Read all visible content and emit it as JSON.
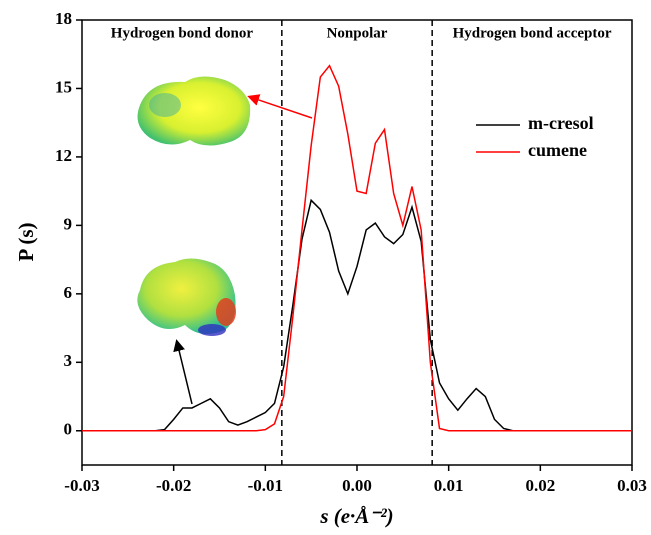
{
  "chart_data": {
    "type": "line",
    "xlabel": "s (e·Å⁻²)",
    "ylabel": "P (s)",
    "annotations": [
      "Hydrogen bond donor",
      "Nonpolar",
      "Hydrogen bond acceptor"
    ],
    "vlines": [
      -0.0082,
      0.0082
    ],
    "x": [
      -0.03,
      -0.029,
      -0.028,
      -0.027,
      -0.026,
      -0.025,
      -0.024,
      -0.023,
      -0.022,
      -0.021,
      -0.02,
      -0.019,
      -0.018,
      -0.017,
      -0.016,
      -0.015,
      -0.014,
      -0.013,
      -0.012,
      -0.011,
      -0.01,
      -0.009,
      -0.008,
      -0.007,
      -0.006,
      -0.005,
      -0.004,
      -0.003,
      -0.002,
      -0.001,
      0,
      0.001,
      0.002,
      0.003,
      0.004,
      0.005,
      0.006,
      0.007,
      0.008,
      0.009,
      0.01,
      0.011,
      0.012,
      0.013,
      0.014,
      0.015,
      0.016,
      0.017,
      0.018,
      0.019,
      0.02,
      0.021,
      0.022,
      0.023,
      0.024,
      0.025,
      0.026,
      0.027,
      0.028,
      0.029,
      0.03
    ],
    "series": [
      {
        "name": "m-cresol",
        "color": "#000000",
        "values": [
          0,
          0,
          0,
          0,
          0,
          0,
          0,
          0,
          0,
          0.05,
          0.5,
          1.0,
          1.0,
          1.2,
          1.4,
          1.0,
          0.4,
          0.25,
          0.4,
          0.6,
          0.8,
          1.2,
          2.8,
          5.5,
          8.4,
          10.1,
          9.7,
          8.7,
          7.0,
          6.0,
          7.2,
          8.8,
          9.1,
          8.5,
          8.2,
          8.6,
          9.8,
          8.3,
          4.0,
          2.1,
          1.4,
          0.9,
          1.4,
          1.85,
          1.5,
          0.5,
          0.1,
          0,
          0,
          0,
          0,
          0,
          0,
          0,
          0,
          0,
          0,
          0,
          0,
          0,
          0
        ]
      },
      {
        "name": "cumene",
        "color": "#ff0000",
        "values": [
          0,
          0,
          0,
          0,
          0,
          0,
          0,
          0,
          0,
          0,
          0,
          0,
          0,
          0,
          0,
          0,
          0,
          0,
          0,
          0,
          0.05,
          0.3,
          1.5,
          5.0,
          8.8,
          12.5,
          15.5,
          16.0,
          15.1,
          13.0,
          10.5,
          10.4,
          12.6,
          13.2,
          10.4,
          9.0,
          10.7,
          8.8,
          3.0,
          0.1,
          0,
          0,
          0,
          0,
          0,
          0,
          0,
          0,
          0,
          0,
          0,
          0,
          0,
          0,
          0,
          0,
          0,
          0,
          0,
          0,
          0
        ]
      }
    ],
    "xlim": [
      -0.03,
      0.03
    ],
    "xticks": [
      -0.03,
      -0.02,
      -0.01,
      {
        "value": 0,
        "label": "0.00"
      },
      0.01,
      0.02,
      0.03
    ],
    "ylim": [
      -1.5,
      18
    ],
    "yticks": [
      0,
      3,
      6,
      9,
      12,
      15,
      18
    ],
    "legend": "upper right"
  }
}
